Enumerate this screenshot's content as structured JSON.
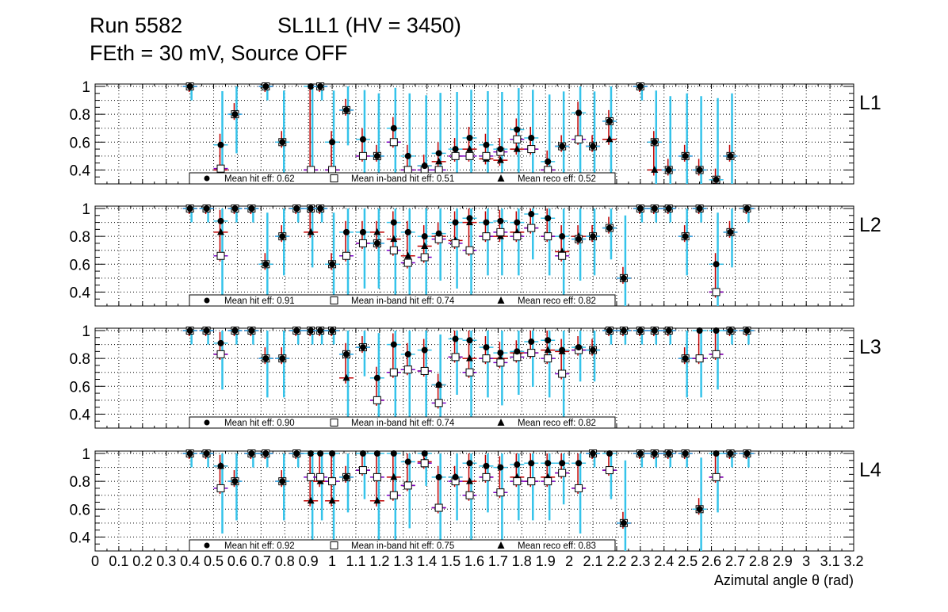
{
  "header": {
    "run": "Run 5582",
    "chamber": "SL1L1 (HV = 3450)",
    "settings": "FEth = 30 mV, Source OFF"
  },
  "colors": {
    "hit": "#000000",
    "inband": "#7a00c8",
    "reco": "#c00000",
    "errbar": "#35c3ea",
    "grid": "#000000"
  },
  "chart_data": {
    "type": "scatter",
    "xlabel": "Azimutal angle θ (rad)",
    "xlim": [
      0,
      3.2
    ],
    "ylim": [
      0.3,
      1.0
    ],
    "x_ticks": [
      {
        "v": 0.0,
        "label": "0"
      },
      {
        "v": 0.1,
        "label": "0.1"
      },
      {
        "v": 0.2,
        "label": "0.2"
      },
      {
        "v": 0.3,
        "label": "0.3"
      },
      {
        "v": 0.4,
        "label": "0.4"
      },
      {
        "v": 0.5,
        "label": "0.5"
      },
      {
        "v": 0.6,
        "label": "0.6"
      },
      {
        "v": 0.7,
        "label": "0.7"
      },
      {
        "v": 0.8,
        "label": "0.8"
      },
      {
        "v": 0.9,
        "label": "0.9"
      },
      {
        "v": 1.0,
        "label": "1"
      },
      {
        "v": 1.1,
        "label": "1.1"
      },
      {
        "v": 1.2,
        "label": "1.2"
      },
      {
        "v": 1.3,
        "label": "1.3"
      },
      {
        "v": 1.4,
        "label": "1.4"
      },
      {
        "v": 1.5,
        "label": "1.5"
      },
      {
        "v": 1.6,
        "label": "1.6"
      },
      {
        "v": 1.7,
        "label": "1.7"
      },
      {
        "v": 1.8,
        "label": "1.8"
      },
      {
        "v": 1.9,
        "label": "1.9"
      },
      {
        "v": 2.0,
        "label": "2"
      },
      {
        "v": 2.1,
        "label": "2.1"
      },
      {
        "v": 2.2,
        "label": "2.2"
      },
      {
        "v": 2.3,
        "label": "2.3"
      },
      {
        "v": 2.4,
        "label": "2.4"
      },
      {
        "v": 2.5,
        "label": "2.5"
      },
      {
        "v": 2.6,
        "label": "2.6"
      },
      {
        "v": 2.7,
        "label": "2.7"
      },
      {
        "v": 2.8,
        "label": "2.8"
      },
      {
        "v": 2.9,
        "label": "2.9"
      },
      {
        "v": 3.0,
        "label": "3"
      },
      {
        "v": 3.1,
        "label": "3.1"
      },
      {
        "v": 3.2,
        "label": "3.2"
      }
    ],
    "y_ticks": [
      {
        "v": 0.4,
        "label": "0.4"
      },
      {
        "v": 0.6,
        "label": "0.6"
      },
      {
        "v": 0.8,
        "label": "0.8"
      },
      {
        "v": 1.0,
        "label": "1"
      }
    ],
    "legend_labels": {
      "hit": "Mean hit  eff:",
      "inband": "Mean in-band hit eff:",
      "reco": "Mean reco eff:"
    },
    "panels": [
      {
        "name": "L1",
        "legend": {
          "hit": "0.62",
          "inband": "0.51",
          "reco": "0.52"
        },
        "x": [
          0.4,
          0.53,
          0.59,
          0.72,
          0.79,
          0.91,
          0.95,
          1.0,
          1.06,
          1.13,
          1.19,
          1.26,
          1.32,
          1.39,
          1.45,
          1.52,
          1.58,
          1.65,
          1.71,
          1.78,
          1.84,
          1.91,
          1.97,
          2.04,
          2.1,
          2.17,
          2.23,
          2.3,
          2.36,
          2.42,
          2.49,
          2.55,
          2.62,
          2.68,
          2.75
        ],
        "hit": [
          1.0,
          0.58,
          0.8,
          1.0,
          0.6,
          1.0,
          1.0,
          0.6,
          0.83,
          0.62,
          0.5,
          0.7,
          0.5,
          0.43,
          0.52,
          0.55,
          0.63,
          0.58,
          0.55,
          0.69,
          0.63,
          0.46,
          0.57,
          0.81,
          0.57,
          0.75,
          null,
          1.0,
          0.6,
          0.4,
          0.5,
          0.4,
          0.33,
          0.5,
          null
        ],
        "inband": [
          1.0,
          0.41,
          0.8,
          1.0,
          0.6,
          0.4,
          1.0,
          0.4,
          0.83,
          0.5,
          0.5,
          0.6,
          0.4,
          0.4,
          0.4,
          0.5,
          0.5,
          0.5,
          0.53,
          0.62,
          0.55,
          0.4,
          0.57,
          0.62,
          0.57,
          0.75,
          null,
          1.0,
          0.6,
          0.4,
          0.5,
          0.4,
          0.33,
          0.5,
          null
        ],
        "reco": [
          1.0,
          0.4,
          0.8,
          1.0,
          0.6,
          0.4,
          1.0,
          0.4,
          0.83,
          0.5,
          0.5,
          0.6,
          0.4,
          0.43,
          0.46,
          0.5,
          0.55,
          0.48,
          0.47,
          0.55,
          0.55,
          0.4,
          0.57,
          0.62,
          0.57,
          0.62,
          null,
          1.0,
          0.4,
          0.4,
          0.5,
          0.4,
          0.33,
          0.5,
          null
        ]
      },
      {
        "name": "L2",
        "legend": {
          "hit": "0.91",
          "inband": "0.74",
          "reco": "0.82"
        },
        "x": [
          0.4,
          0.47,
          0.53,
          0.59,
          0.66,
          0.72,
          0.79,
          0.85,
          0.91,
          0.95,
          1.0,
          1.06,
          1.13,
          1.19,
          1.26,
          1.32,
          1.39,
          1.45,
          1.52,
          1.58,
          1.65,
          1.71,
          1.78,
          1.84,
          1.91,
          1.97,
          2.04,
          2.1,
          2.17,
          2.23,
          2.3,
          2.36,
          2.42,
          2.49,
          2.55,
          2.62,
          2.68,
          2.75
        ],
        "hit": [
          1.0,
          1.0,
          0.91,
          1.0,
          1.0,
          0.6,
          0.8,
          1.0,
          1.0,
          1.0,
          0.6,
          0.83,
          0.83,
          0.75,
          0.9,
          0.83,
          0.8,
          0.82,
          0.9,
          0.93,
          0.9,
          0.91,
          0.9,
          0.96,
          0.93,
          0.8,
          0.78,
          0.8,
          0.86,
          0.5,
          1.0,
          1.0,
          1.0,
          0.8,
          1.0,
          0.6,
          0.83,
          1.0
        ],
        "inband": [
          1.0,
          1.0,
          0.66,
          1.0,
          1.0,
          0.6,
          0.8,
          1.0,
          1.0,
          1.0,
          0.6,
          0.66,
          0.75,
          0.75,
          0.7,
          0.61,
          0.65,
          0.78,
          0.75,
          0.7,
          0.8,
          0.83,
          0.8,
          0.86,
          0.8,
          0.66,
          0.78,
          0.8,
          0.86,
          0.5,
          1.0,
          1.0,
          1.0,
          0.8,
          1.0,
          0.4,
          0.83,
          1.0
        ],
        "reco": [
          1.0,
          1.0,
          0.83,
          1.0,
          1.0,
          0.6,
          0.8,
          1.0,
          0.83,
          1.0,
          0.6,
          0.66,
          0.75,
          0.83,
          0.78,
          0.66,
          0.73,
          0.8,
          0.77,
          0.9,
          0.8,
          0.8,
          0.83,
          0.86,
          0.8,
          0.69,
          0.8,
          0.8,
          0.86,
          0.5,
          1.0,
          1.0,
          1.0,
          0.8,
          1.0,
          0.4,
          0.83,
          1.0
        ]
      },
      {
        "name": "L3",
        "legend": {
          "hit": "0.90",
          "inband": "0.74",
          "reco": "0.82"
        },
        "x": [
          0.4,
          0.47,
          0.53,
          0.59,
          0.66,
          0.72,
          0.79,
          0.85,
          0.91,
          0.95,
          1.0,
          1.06,
          1.13,
          1.19,
          1.26,
          1.32,
          1.39,
          1.45,
          1.52,
          1.58,
          1.65,
          1.71,
          1.78,
          1.84,
          1.91,
          1.97,
          2.04,
          2.1,
          2.17,
          2.23,
          2.3,
          2.36,
          2.42,
          2.49,
          2.55,
          2.62,
          2.68,
          2.75
        ],
        "hit": [
          1.0,
          1.0,
          0.91,
          1.0,
          1.0,
          0.8,
          0.8,
          1.0,
          1.0,
          1.0,
          1.0,
          0.83,
          0.88,
          0.66,
          0.9,
          0.83,
          0.86,
          0.61,
          0.94,
          0.93,
          0.88,
          0.84,
          0.85,
          0.92,
          0.93,
          0.86,
          0.88,
          0.86,
          1.0,
          1.0,
          1.0,
          1.0,
          1.0,
          0.8,
          1.0,
          1.0,
          1.0,
          1.0
        ],
        "inband": [
          1.0,
          1.0,
          0.83,
          1.0,
          1.0,
          0.8,
          0.8,
          1.0,
          1.0,
          1.0,
          1.0,
          0.83,
          0.88,
          0.5,
          0.7,
          0.72,
          0.71,
          0.48,
          0.81,
          0.7,
          0.8,
          0.77,
          0.81,
          0.84,
          0.8,
          0.69,
          0.86,
          0.86,
          1.0,
          1.0,
          1.0,
          1.0,
          1.0,
          0.8,
          0.8,
          0.83,
          1.0,
          1.0
        ],
        "reco": [
          1.0,
          1.0,
          0.83,
          1.0,
          1.0,
          0.8,
          0.8,
          1.0,
          1.0,
          1.0,
          1.0,
          0.66,
          0.88,
          0.5,
          0.7,
          0.72,
          0.71,
          0.61,
          0.81,
          0.8,
          0.8,
          0.8,
          0.84,
          0.84,
          0.86,
          0.85,
          0.86,
          0.86,
          1.0,
          1.0,
          1.0,
          1.0,
          1.0,
          0.8,
          0.8,
          0.83,
          1.0,
          1.0
        ]
      },
      {
        "name": "L4",
        "legend": {
          "hit": "0.92",
          "inband": "0.75",
          "reco": "0.83"
        },
        "x": [
          0.4,
          0.47,
          0.53,
          0.59,
          0.66,
          0.72,
          0.79,
          0.85,
          0.91,
          0.95,
          1.0,
          1.06,
          1.13,
          1.19,
          1.26,
          1.32,
          1.39,
          1.45,
          1.52,
          1.58,
          1.65,
          1.71,
          1.78,
          1.84,
          1.91,
          1.97,
          2.04,
          2.1,
          2.17,
          2.23,
          2.3,
          2.36,
          2.42,
          2.49,
          2.55,
          2.62,
          2.68,
          2.75
        ],
        "hit": [
          1.0,
          1.0,
          0.91,
          0.8,
          1.0,
          1.0,
          0.8,
          1.0,
          1.0,
          1.0,
          1.0,
          0.83,
          1.0,
          1.0,
          1.0,
          0.94,
          1.0,
          0.83,
          0.83,
          0.93,
          0.91,
          0.9,
          0.92,
          0.93,
          0.93,
          0.93,
          0.93,
          1.0,
          1.0,
          0.5,
          1.0,
          1.0,
          1.0,
          1.0,
          0.6,
          1.0,
          1.0,
          1.0
        ],
        "inband": [
          1.0,
          1.0,
          0.75,
          0.8,
          1.0,
          1.0,
          0.8,
          1.0,
          0.83,
          0.83,
          0.8,
          0.83,
          0.88,
          0.83,
          0.7,
          0.77,
          0.93,
          0.61,
          0.8,
          0.7,
          0.83,
          0.72,
          0.8,
          0.8,
          0.8,
          0.86,
          0.75,
          1.0,
          0.88,
          0.5,
          1.0,
          1.0,
          1.0,
          1.0,
          0.6,
          0.83,
          1.0,
          1.0
        ],
        "reco": [
          1.0,
          1.0,
          0.91,
          0.8,
          1.0,
          1.0,
          0.8,
          1.0,
          0.66,
          0.8,
          0.66,
          0.83,
          0.88,
          0.66,
          0.83,
          0.77,
          0.94,
          0.61,
          0.83,
          0.8,
          0.83,
          0.72,
          0.83,
          0.8,
          0.83,
          0.86,
          0.75,
          1.0,
          0.88,
          0.5,
          1.0,
          1.0,
          1.0,
          1.0,
          0.6,
          0.83,
          1.0,
          1.0
        ]
      }
    ]
  }
}
